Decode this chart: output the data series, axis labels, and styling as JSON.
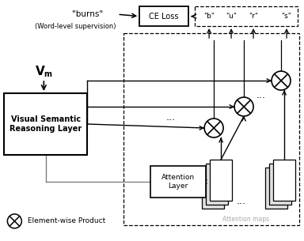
{
  "figsize": [
    3.84,
    3.05
  ],
  "dpi": 100,
  "bg_color": "#ffffff",
  "burns_text": "\"burns\"",
  "word_supervision_text": "(Word-level supervision)",
  "ce_loss_label": "CE Loss",
  "char_labels": [
    "\"b\"",
    "\"u\"",
    "\"r\"",
    "\"s\""
  ],
  "vsrl_label": "Visual Semantic\nReasoning Layer",
  "attn_layer_label": "Attention\nLayer",
  "element_wise_label": " Element-wise Product",
  "attention_maps_label": "Attention maps"
}
